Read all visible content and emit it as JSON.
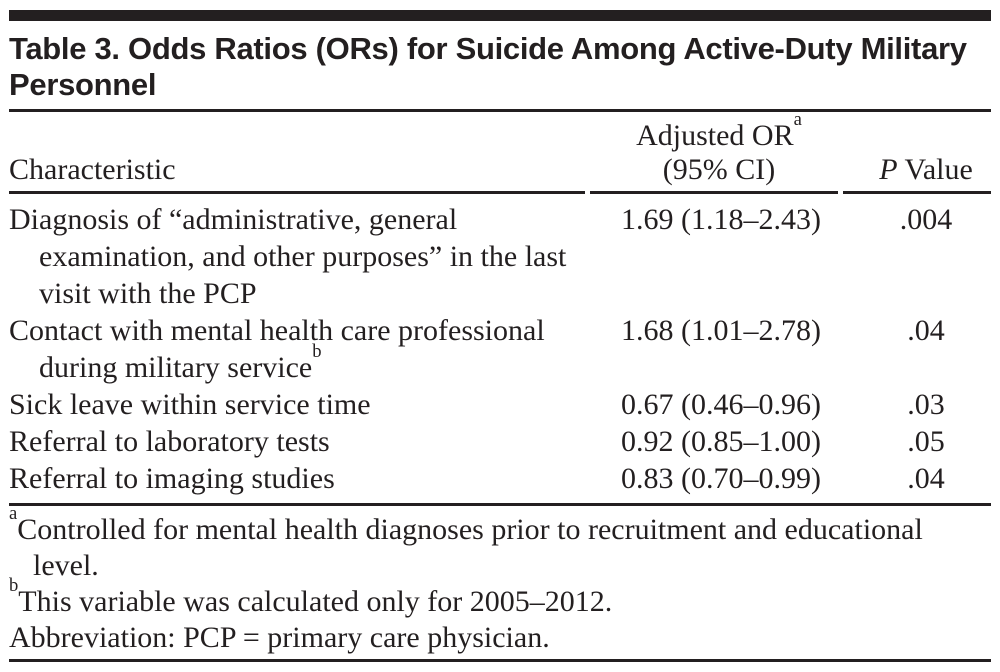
{
  "page": {
    "ink_color": "#231f20",
    "background_color": "#ffffff"
  },
  "table": {
    "title": "Table 3. Odds Ratios (ORs) for Suicide Among Active-Duty Military Personnel",
    "header": {
      "characteristic": "Characteristic",
      "or_line1": "Adjusted OR",
      "or_sup": "a",
      "or_line2": "(95% CI)",
      "p_italic": "P",
      "p_rest": " Value"
    },
    "rows": [
      {
        "characteristic": "Diagnosis of “administrative, general examination, and other purposes” in the last visit with the PCP",
        "sup": "",
        "or": "1.69 (1.18–2.43)",
        "p": ".004"
      },
      {
        "characteristic": "Contact with mental health care professional during military service",
        "sup": "b",
        "or": "1.68 (1.01–2.78)",
        "p": ".04"
      },
      {
        "characteristic": "Sick leave within service time",
        "sup": "",
        "or": "0.67 (0.46–0.96)",
        "p": ".03"
      },
      {
        "characteristic": "Referral to laboratory tests",
        "sup": "",
        "or": "0.92 (0.85–1.00)",
        "p": ".05"
      },
      {
        "characteristic": "Referral to imaging studies",
        "sup": "",
        "or": "0.83 (0.70–0.99)",
        "p": ".04"
      }
    ],
    "footnotes": [
      {
        "sup": "a",
        "text": "Controlled for mental health diagnoses prior to recruitment and educational level."
      },
      {
        "sup": "b",
        "text": "This variable was calculated only for 2005–2012."
      },
      {
        "sup": "",
        "text": "Abbreviation: PCP = primary care physician."
      }
    ]
  }
}
